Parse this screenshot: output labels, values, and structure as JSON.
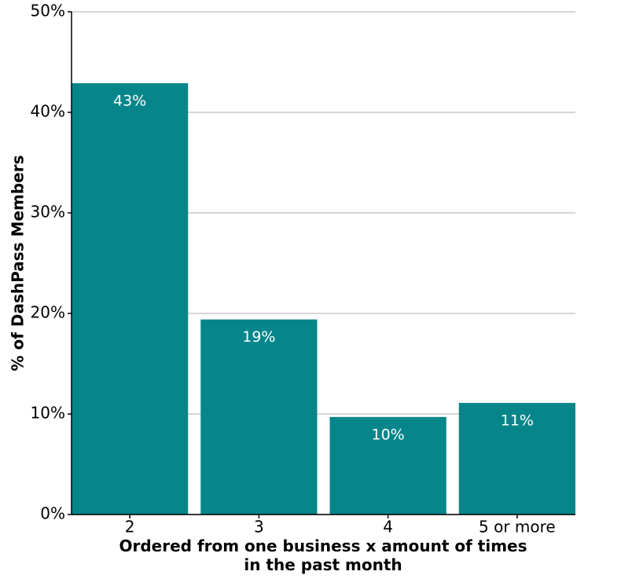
{
  "chart_data": {
    "type": "bar",
    "categories": [
      "2",
      "3",
      "4",
      "5 or more"
    ],
    "values": [
      42.9,
      19.4,
      9.7,
      11.1
    ],
    "value_labels": [
      "43%",
      "19%",
      "10%",
      "11%"
    ],
    "color": "#06868a",
    "x_label": "Ordered from one business x amount of times in the past month",
    "y_label": "% of DashPass Members",
    "ylim": [
      0,
      50
    ],
    "yticks": [
      {
        "value": 0,
        "label": "0%"
      },
      {
        "value": 10,
        "label": "10%"
      },
      {
        "value": 20,
        "label": "20%"
      },
      {
        "value": 30,
        "label": "30%"
      },
      {
        "value": 40,
        "label": "40%"
      },
      {
        "value": 50,
        "label": "50%"
      }
    ],
    "grid": true
  }
}
